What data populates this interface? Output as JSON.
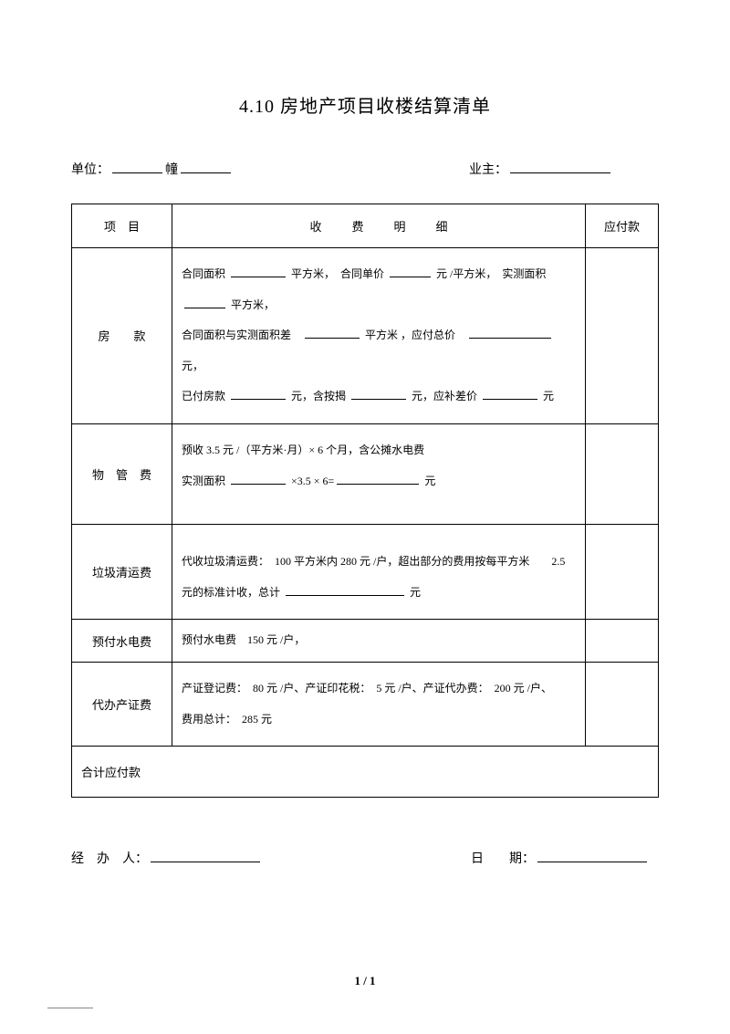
{
  "title": "4.10 房地产项目收楼结算清单",
  "header": {
    "unit_label": "单位：",
    "building_label": "幢",
    "owner_label": "业主："
  },
  "table": {
    "headers": {
      "item": "项　目",
      "detail": "收　费　明　细",
      "payable": "应付款"
    },
    "rows": [
      {
        "item": "房　　款",
        "detail_lines": [
          [
            "合同面积 ",
            {
              "blank": "med"
            },
            " 平方米，　合同单价 ",
            {
              "blank": "short"
            },
            " 元 /平方米，　实测面积",
            {
              "blank": "short"
            },
            " 平方米，"
          ],
          [
            "合同面积与实测面积差　",
            {
              "blank": "med"
            },
            " 平方米 ，应付总价　",
            {
              "blank": "long"
            },
            " 元，"
          ],
          [
            "已付房款 ",
            {
              "blank": "med"
            },
            " 元，含按揭 ",
            {
              "blank": "med"
            },
            " 元，应补差价 ",
            {
              "blank": "med"
            },
            " 元"
          ]
        ]
      },
      {
        "item": "物　管　费",
        "detail_lines": [
          [
            "预收 3.5 元 /（平方米·月）× 6 个月，含公摊水电费"
          ],
          [
            "实测面积 ",
            {
              "blank": "med"
            },
            " ×3.5 × 6=",
            {
              "blank": "long"
            },
            " 元"
          ]
        ],
        "extra_pad": true
      },
      {
        "item": "垃圾清运费",
        "detail_lines": [
          [
            "代收垃圾清运费：　100 平方米内 280 元 /户，超出部分的费用按每平方米　　2.5"
          ],
          [
            "元的标准计收，总计 ",
            {
              "blank": "xlong"
            },
            " 元"
          ]
        ],
        "top_pad": true
      },
      {
        "item": "预付水电费",
        "detail_lines": [
          [
            "预付水电费　150 元 /户，"
          ]
        ],
        "compact": true
      },
      {
        "item": "代办产证费",
        "detail_lines": [
          [
            "产证登记费：　80 元 /户、产证印花税：　5 元 /户、产证代办费：　200 元 /户、"
          ],
          [
            "费用总计：　285 元"
          ]
        ]
      }
    ],
    "total_label": "合计应付款"
  },
  "footer": {
    "handler_label": "经　办　人：",
    "date_label": "日　　期："
  },
  "page_num": "1 / 1"
}
